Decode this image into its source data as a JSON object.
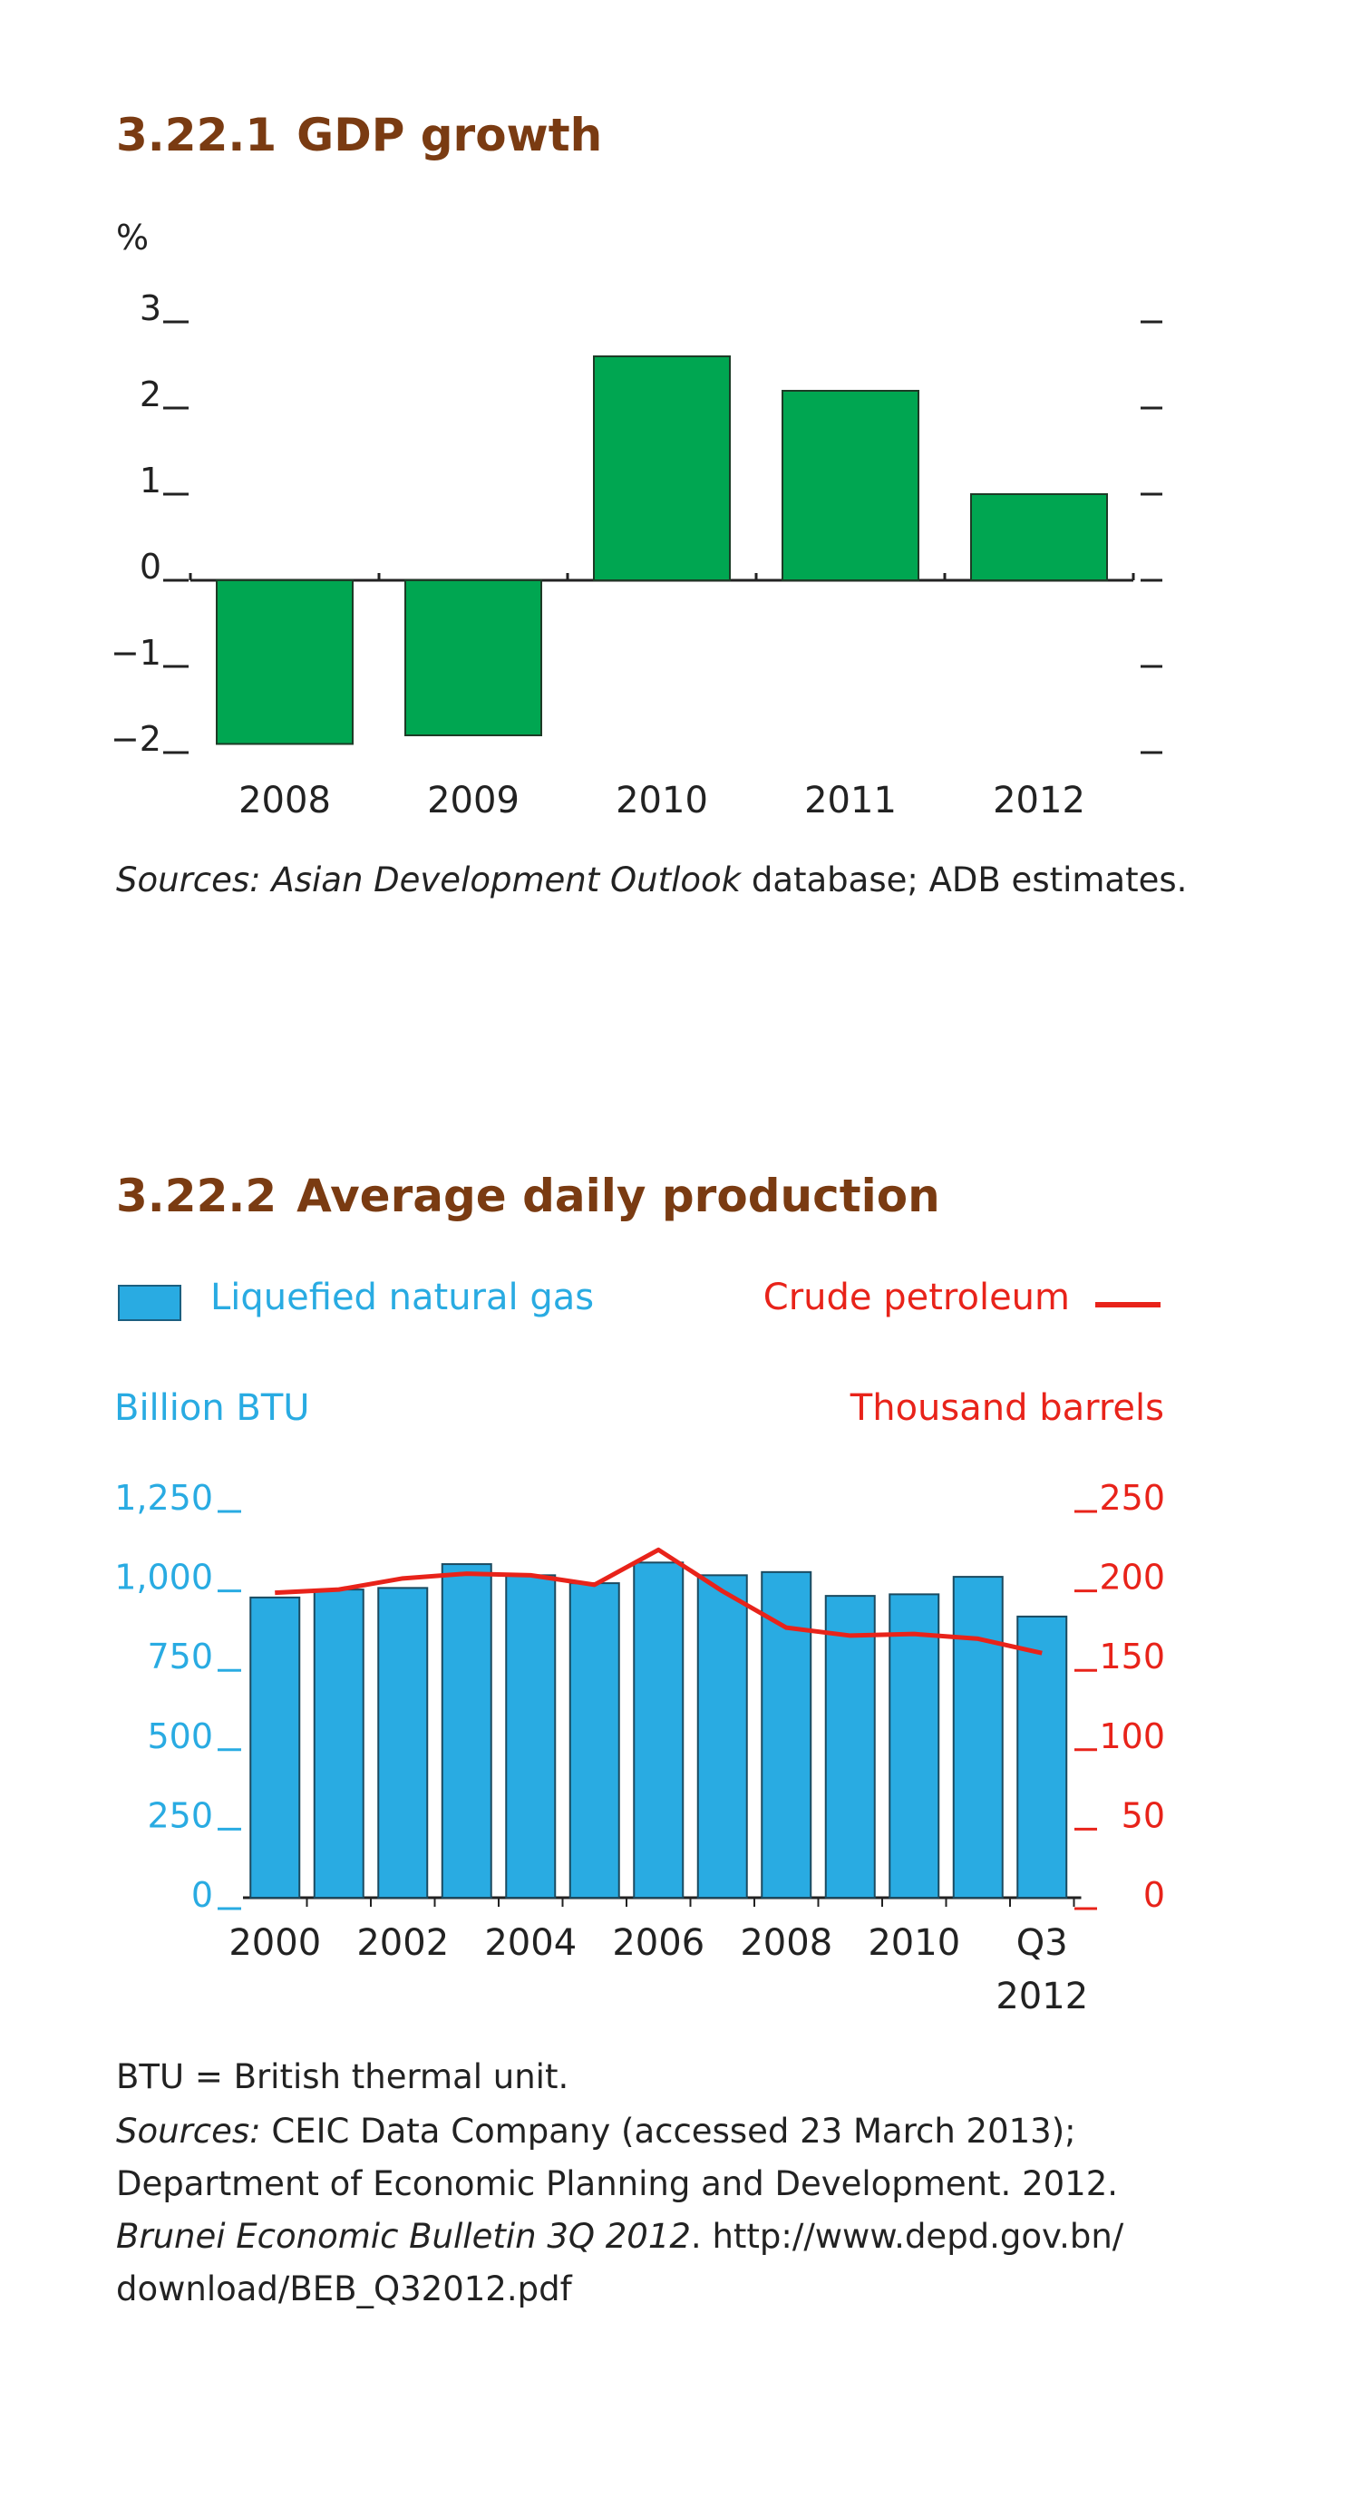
{
  "figures": [
    {
      "number": "3.22.1",
      "title": "GDP growth",
      "unit_label": "%",
      "source": {
        "prefix": "Sources:",
        "italic_title": "Asian Development Outlook",
        "rest": " database; ADB estimates."
      }
    },
    {
      "number": "3.22.2",
      "title": "Average daily production",
      "legend": {
        "bars": "Liquefied natural gas",
        "line": "Crude petroleum"
      },
      "left_axis_title": "Billion BTU",
      "right_axis_title": "Thousand barrels",
      "note": "BTU = British thermal unit.",
      "source": {
        "prefix": "Sources:",
        "line1": " CEIC Data Company (accessed 23 March 2013);",
        "line2": "Department of Economic Planning and Development. 2012.",
        "line3_italic": "Brunei Economic Bulletin 3Q 2012",
        "line3_rest": ". http://www.depd.gov.bn/",
        "line4": "download/BEB_Q32012.pdf"
      }
    }
  ],
  "colors": {
    "title": "#7a3b12",
    "gdp_bar": "#00a651",
    "lng_bar": "#29abe2",
    "crude_line": "#e8231a",
    "axis": "#222222"
  },
  "chart_data": [
    {
      "type": "bar",
      "title": "GDP growth",
      "ylabel": "%",
      "categories": [
        "2008",
        "2009",
        "2010",
        "2011",
        "2012"
      ],
      "values": [
        -1.9,
        -1.8,
        2.6,
        2.2,
        1.0
      ],
      "ylim": [
        -2,
        3
      ],
      "yticks": [
        3,
        2,
        1,
        0,
        -1,
        -2
      ],
      "ytick_labels": [
        "3",
        "2",
        "1",
        "0",
        "−1",
        "−2"
      ],
      "grid": false
    },
    {
      "type": "bar",
      "title": "Average daily production",
      "categories": [
        "2000",
        "2001",
        "2002",
        "2003",
        "2004",
        "2005",
        "2006",
        "2007",
        "2008",
        "2009",
        "2010",
        "2011",
        "Q3 2012"
      ],
      "xtick_labels": [
        "2000",
        "2002",
        "2004",
        "2006",
        "2008",
        "2010",
        "Q3"
      ],
      "xtick_label_sub": "2012",
      "series": [
        {
          "name": "Liquefied natural gas",
          "kind": "bar",
          "axis": "left",
          "values": [
            945,
            970,
            975,
            1050,
            1015,
            990,
            1055,
            1015,
            1025,
            950,
            955,
            1010,
            885
          ]
        },
        {
          "name": "Crude petroleum",
          "kind": "line",
          "axis": "right",
          "values": [
            192,
            194,
            201,
            204,
            203,
            197,
            219,
            193,
            170,
            165,
            166,
            163,
            154
          ]
        }
      ],
      "left_axis": {
        "label": "Billion BTU",
        "ylim": [
          0,
          1250
        ],
        "ticks": [
          1250,
          1000,
          750,
          500,
          250,
          0
        ],
        "tick_labels": [
          "1,250",
          "1,000",
          "750",
          "500",
          "250",
          "0"
        ]
      },
      "right_axis": {
        "label": "Thousand barrels",
        "ylim": [
          0,
          250
        ],
        "ticks": [
          250,
          200,
          150,
          100,
          50,
          0
        ],
        "tick_labels": [
          "250",
          "200",
          "150",
          "100",
          "50",
          "0"
        ]
      },
      "legend_position": "top",
      "grid": false
    }
  ]
}
